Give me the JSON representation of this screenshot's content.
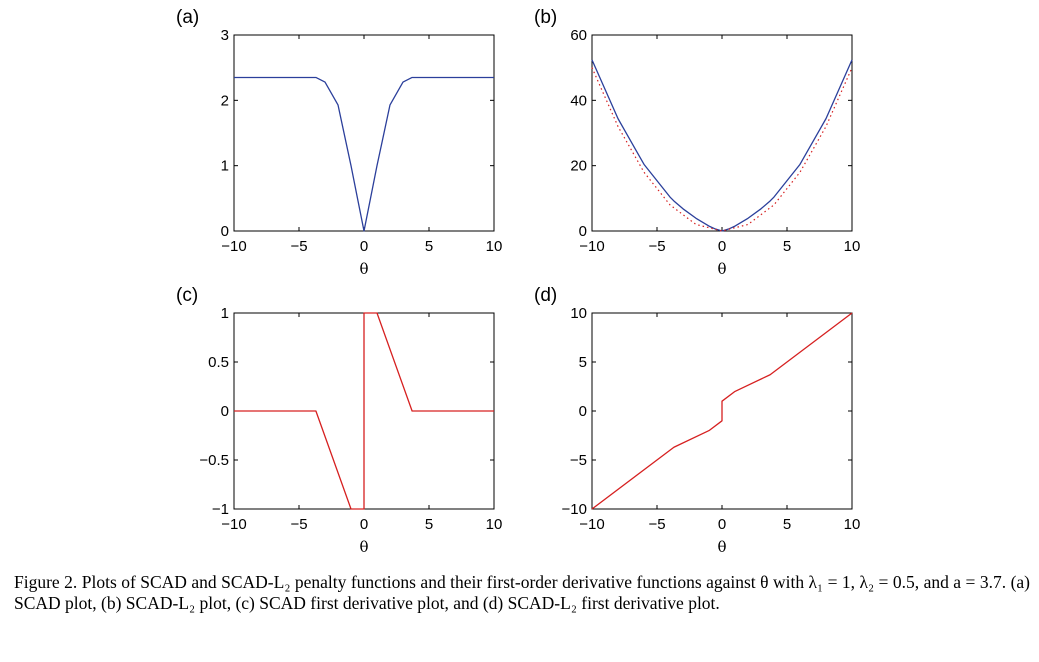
{
  "figure": {
    "caption": "Figure 2.  Plots of SCAD and SCAD-L₂ penalty functions and their first-order derivative functions against θ with λ₁ = 1, λ₂ = 0.5, and a = 3.7. (a) SCAD plot, (b) SCAD-L₂ plot, (c) SCAD first derivative plot, and (d) SCAD-L₂ first derivative plot."
  },
  "colors": {
    "blue": "#2b3f9b",
    "red": "#d62020",
    "axis": "#000000"
  },
  "chart_data": [
    {
      "type": "line",
      "panel_label": "(a)",
      "xlabel": "θ",
      "ylabel": "",
      "xlim": [
        -10,
        10
      ],
      "ylim": [
        0,
        3
      ],
      "xticks": [
        -10,
        -5,
        0,
        5,
        10
      ],
      "xtick_labels": [
        "−10",
        "−5",
        "0",
        "5",
        "10"
      ],
      "yticks": [
        0,
        1,
        2,
        3
      ],
      "ytick_labels": [
        "0",
        "1",
        "2",
        "3"
      ],
      "series": [
        {
          "color": "#2b3f9b",
          "style": "solid",
          "x": [
            -10,
            -3.7,
            -3,
            -2,
            -1,
            -0.5,
            0,
            0.5,
            1,
            2,
            3,
            3.7,
            10
          ],
          "y": [
            2.35,
            2.35,
            2.28,
            1.93,
            1.0,
            0.5,
            0,
            0.5,
            1.0,
            1.93,
            2.28,
            2.35,
            2.35
          ]
        }
      ]
    },
    {
      "type": "line",
      "panel_label": "(b)",
      "xlabel": "θ",
      "ylabel": "",
      "xlim": [
        -10,
        10
      ],
      "ylim": [
        0,
        60
      ],
      "xticks": [
        -10,
        -5,
        0,
        5,
        10
      ],
      "xtick_labels": [
        "−10",
        "−5",
        "0",
        "5",
        "10"
      ],
      "yticks": [
        0,
        20,
        40,
        60
      ],
      "ytick_labels": [
        "0",
        "20",
        "40",
        "60"
      ],
      "series": [
        {
          "color": "#2b3f9b",
          "style": "solid",
          "x": [
            -10,
            -8,
            -6,
            -4,
            -3.7,
            -3,
            -2,
            -1,
            -0.5,
            0,
            0.5,
            1,
            2,
            3,
            3.7,
            4,
            6,
            8,
            10
          ],
          "y": [
            52.4,
            34.4,
            20.4,
            10.4,
            9.2,
            6.8,
            3.9,
            1.5,
            0.6,
            0,
            0.6,
            1.5,
            3.9,
            6.8,
            9.2,
            10.4,
            20.4,
            34.4,
            52.4
          ]
        },
        {
          "color": "#d62020",
          "style": "dotted",
          "x": [
            -10,
            -8,
            -6,
            -4,
            -2,
            0,
            2,
            4,
            6,
            8,
            10
          ],
          "y": [
            50,
            32,
            18,
            8,
            2,
            0,
            2,
            8,
            18,
            32,
            50
          ]
        }
      ]
    },
    {
      "type": "line",
      "panel_label": "(c)",
      "xlabel": "θ",
      "ylabel": "",
      "xlim": [
        -10,
        10
      ],
      "ylim": [
        -1,
        1
      ],
      "xticks": [
        -10,
        -5,
        0,
        5,
        10
      ],
      "xtick_labels": [
        "−10",
        "−5",
        "0",
        "5",
        "10"
      ],
      "yticks": [
        -1,
        -0.5,
        0,
        0.5,
        1
      ],
      "ytick_labels": [
        "−1",
        "−0.5",
        "0",
        "0.5",
        "1"
      ],
      "series": [
        {
          "color": "#d62020",
          "style": "solid",
          "x": [
            -10,
            -3.7,
            -1,
            0,
            0,
            1,
            3.7,
            10
          ],
          "y": [
            0,
            0,
            -1,
            -1,
            1,
            1,
            0,
            0
          ]
        }
      ]
    },
    {
      "type": "line",
      "panel_label": "(d)",
      "xlabel": "θ",
      "ylabel": "",
      "xlim": [
        -10,
        10
      ],
      "ylim": [
        -10,
        10
      ],
      "xticks": [
        -10,
        -5,
        0,
        5,
        10
      ],
      "xtick_labels": [
        "−10",
        "−5",
        "0",
        "5",
        "10"
      ],
      "yticks": [
        -10,
        -5,
        0,
        5,
        10
      ],
      "ytick_labels": [
        "−10",
        "−5",
        "0",
        "5",
        "10"
      ],
      "series": [
        {
          "color": "#d62020",
          "style": "solid",
          "x": [
            -10,
            -3.7,
            -1,
            0,
            0,
            1,
            3.7,
            10
          ],
          "y": [
            -10,
            -3.7,
            -2,
            -1,
            1,
            2,
            3.7,
            10
          ]
        }
      ]
    }
  ]
}
